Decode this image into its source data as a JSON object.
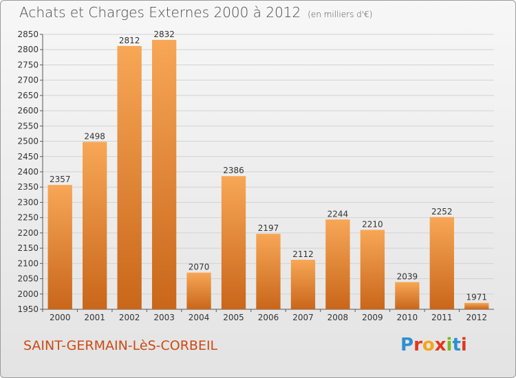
{
  "header": {
    "title": "Achats et Charges Externes 2000 à 2012",
    "subtitle": "(en milliers d'€)"
  },
  "footer": {
    "town": "SAINT-GERMAIN-LèS-CORBEIL",
    "logo": "Proxiti"
  },
  "colors": {
    "bar_top": "#f7a756",
    "bar_bottom": "#c9661a",
    "town": "#cc4a12",
    "logo": [
      "#2f8fd1",
      "#e2361c",
      "#f4a51c",
      "#e2361c",
      "#7ab828",
      "#2f8fd1",
      "#e2361c"
    ]
  },
  "chart_data": {
    "type": "bar",
    "title": "Achats et Charges Externes 2000 à 2012",
    "subtitle": "(en milliers d'€)",
    "categories": [
      "2000",
      "2001",
      "2002",
      "2003",
      "2004",
      "2005",
      "2006",
      "2007",
      "2008",
      "2009",
      "2010",
      "2011",
      "2012"
    ],
    "values": [
      2357,
      2498,
      2812,
      2832,
      2070,
      2386,
      2197,
      2112,
      2244,
      2210,
      2039,
      2252,
      1971
    ],
    "ylim": [
      1950,
      2850
    ],
    "yticks": [
      1950,
      2000,
      2050,
      2100,
      2150,
      2200,
      2250,
      2300,
      2350,
      2400,
      2450,
      2500,
      2550,
      2600,
      2650,
      2700,
      2750,
      2800,
      2850
    ],
    "grid": true,
    "xlabel": "",
    "ylabel": ""
  }
}
